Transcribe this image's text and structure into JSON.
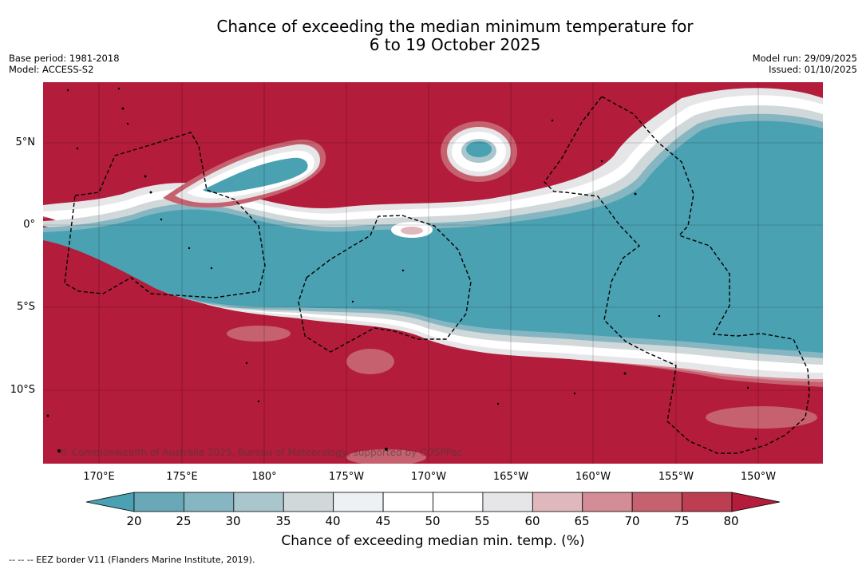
{
  "title": {
    "line1": "Chance of exceeding the median minimum temperature for",
    "line2": "6 to 19 October 2025"
  },
  "meta_left": {
    "base_period": "Base period: 1981-2018",
    "model": "Model: ACCESS-S2"
  },
  "meta_right": {
    "model_run": "Model run: 29/09/2025",
    "issued": "Issued: 01/10/2025"
  },
  "map": {
    "lat_labels": [
      "5°N",
      "0°",
      "5°S",
      "10°S"
    ],
    "lon_labels": [
      "170°E",
      "175°E",
      "180°",
      "175°W",
      "170°W",
      "165°W",
      "160°W",
      "155°W",
      "150°W"
    ],
    "copyright": "© Commonwealth of Australia 2025, Bureau of Meteorology, supported by COSPPac"
  },
  "colorbar": {
    "ticks": [
      "20",
      "25",
      "30",
      "35",
      "40",
      "45",
      "50",
      "55",
      "60",
      "65",
      "70",
      "75",
      "80"
    ],
    "colors": [
      "#69a8b6",
      "#86b6c1",
      "#a8c6cc",
      "#d0d8da",
      "#eef1f3",
      "#ffffff",
      "#ffffff",
      "#e6e6e8",
      "#dfb8be",
      "#d48c96",
      "#c6616f",
      "#bd3e50"
    ],
    "under_color": "#4aa1b2",
    "over_color": "#b31c3a",
    "label": "Chance of exceeding median min. temp. (%)"
  },
  "footnote": "-- -- -- EEZ border V11 (Flanders Marine Institute, 2019)."
}
